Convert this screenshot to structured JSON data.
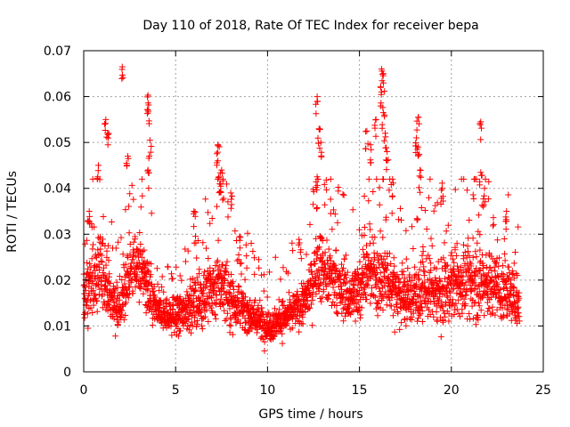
{
  "chart_data": {
    "type": "scatter",
    "title": "Day 110 of 2018, Rate Of TEC Index for receiver bepa",
    "xlabel": "GPS time / hours",
    "ylabel": "ROTI / TECUs",
    "xlim": [
      0,
      25
    ],
    "ylim": [
      0,
      0.07
    ],
    "x_ticks": [
      0,
      5,
      10,
      15,
      20,
      25
    ],
    "y_ticks": [
      0,
      0.01,
      0.02,
      0.03,
      0.04,
      0.05,
      0.06,
      0.07
    ],
    "x_tick_labels": [
      "0",
      "5",
      "10",
      "15",
      "20",
      "25"
    ],
    "y_tick_labels": [
      "0",
      "0.01",
      "0.02",
      "0.03",
      "0.04",
      "0.05",
      "0.06",
      "0.07"
    ],
    "grid": true,
    "marker": "+",
    "color": "#ff0000",
    "series": [
      {
        "name": "ROTI",
        "profile": [
          {
            "x": 0.0,
            "mean": 0.016,
            "spread": 0.007
          },
          {
            "x": 0.5,
            "mean": 0.02,
            "spread": 0.01
          },
          {
            "x": 1.0,
            "mean": 0.022,
            "spread": 0.012
          },
          {
            "x": 1.5,
            "mean": 0.016,
            "spread": 0.007
          },
          {
            "x": 2.0,
            "mean": 0.014,
            "spread": 0.006
          },
          {
            "x": 2.5,
            "mean": 0.022,
            "spread": 0.009
          },
          {
            "x": 3.0,
            "mean": 0.024,
            "spread": 0.01
          },
          {
            "x": 3.5,
            "mean": 0.018,
            "spread": 0.009
          },
          {
            "x": 4.0,
            "mean": 0.013,
            "spread": 0.005
          },
          {
            "x": 5.0,
            "mean": 0.012,
            "spread": 0.005
          },
          {
            "x": 6.0,
            "mean": 0.015,
            "spread": 0.007
          },
          {
            "x": 7.0,
            "mean": 0.018,
            "spread": 0.009
          },
          {
            "x": 7.5,
            "mean": 0.02,
            "spread": 0.01
          },
          {
            "x": 8.0,
            "mean": 0.016,
            "spread": 0.008
          },
          {
            "x": 9.0,
            "mean": 0.013,
            "spread": 0.006
          },
          {
            "x": 10.0,
            "mean": 0.01,
            "spread": 0.005
          },
          {
            "x": 11.0,
            "mean": 0.012,
            "spread": 0.005
          },
          {
            "x": 12.0,
            "mean": 0.015,
            "spread": 0.006
          },
          {
            "x": 12.8,
            "mean": 0.024,
            "spread": 0.01
          },
          {
            "x": 13.5,
            "mean": 0.02,
            "spread": 0.009
          },
          {
            "x": 14.5,
            "mean": 0.016,
            "spread": 0.008
          },
          {
            "x": 15.5,
            "mean": 0.022,
            "spread": 0.01
          },
          {
            "x": 16.5,
            "mean": 0.02,
            "spread": 0.01
          },
          {
            "x": 17.5,
            "mean": 0.016,
            "spread": 0.008
          },
          {
            "x": 18.5,
            "mean": 0.018,
            "spread": 0.009
          },
          {
            "x": 19.5,
            "mean": 0.017,
            "spread": 0.009
          },
          {
            "x": 20.5,
            "mean": 0.019,
            "spread": 0.01
          },
          {
            "x": 21.5,
            "mean": 0.02,
            "spread": 0.01
          },
          {
            "x": 22.5,
            "mean": 0.018,
            "spread": 0.009
          },
          {
            "x": 23.7,
            "mean": 0.016,
            "spread": 0.008
          }
        ],
        "peaks": [
          {
            "x": 0.3,
            "y": 0.035
          },
          {
            "x": 0.8,
            "y": 0.045
          },
          {
            "x": 1.2,
            "y": 0.055
          },
          {
            "x": 1.3,
            "y": 0.052
          },
          {
            "x": 2.1,
            "y": 0.0665
          },
          {
            "x": 2.4,
            "y": 0.047
          },
          {
            "x": 3.5,
            "y": 0.0603
          },
          {
            "x": 3.5,
            "y": 0.057
          },
          {
            "x": 3.6,
            "y": 0.0505
          },
          {
            "x": 3.5,
            "y": 0.044
          },
          {
            "x": 6.0,
            "y": 0.035
          },
          {
            "x": 7.3,
            "y": 0.0495
          },
          {
            "x": 7.3,
            "y": 0.046
          },
          {
            "x": 7.4,
            "y": 0.041
          },
          {
            "x": 7.5,
            "y": 0.044
          },
          {
            "x": 8.0,
            "y": 0.039
          },
          {
            "x": 8.5,
            "y": 0.027
          },
          {
            "x": 12.7,
            "y": 0.06
          },
          {
            "x": 12.7,
            "y": 0.0425
          },
          {
            "x": 12.8,
            "y": 0.053
          },
          {
            "x": 12.9,
            "y": 0.05
          },
          {
            "x": 15.4,
            "y": 0.0525
          },
          {
            "x": 15.6,
            "y": 0.0495
          },
          {
            "x": 15.9,
            "y": 0.055
          },
          {
            "x": 16.2,
            "y": 0.066
          },
          {
            "x": 16.3,
            "y": 0.065
          },
          {
            "x": 16.2,
            "y": 0.061
          },
          {
            "x": 16.3,
            "y": 0.0565
          },
          {
            "x": 16.4,
            "y": 0.052
          },
          {
            "x": 16.5,
            "y": 0.048
          },
          {
            "x": 16.8,
            "y": 0.042
          },
          {
            "x": 18.2,
            "y": 0.0555
          },
          {
            "x": 18.1,
            "y": 0.051
          },
          {
            "x": 18.2,
            "y": 0.049
          },
          {
            "x": 18.3,
            "y": 0.044
          },
          {
            "x": 19.5,
            "y": 0.04
          },
          {
            "x": 21.6,
            "y": 0.0545
          },
          {
            "x": 21.6,
            "y": 0.0435
          },
          {
            "x": 21.8,
            "y": 0.04
          },
          {
            "x": 23.0,
            "y": 0.035
          }
        ]
      }
    ]
  }
}
